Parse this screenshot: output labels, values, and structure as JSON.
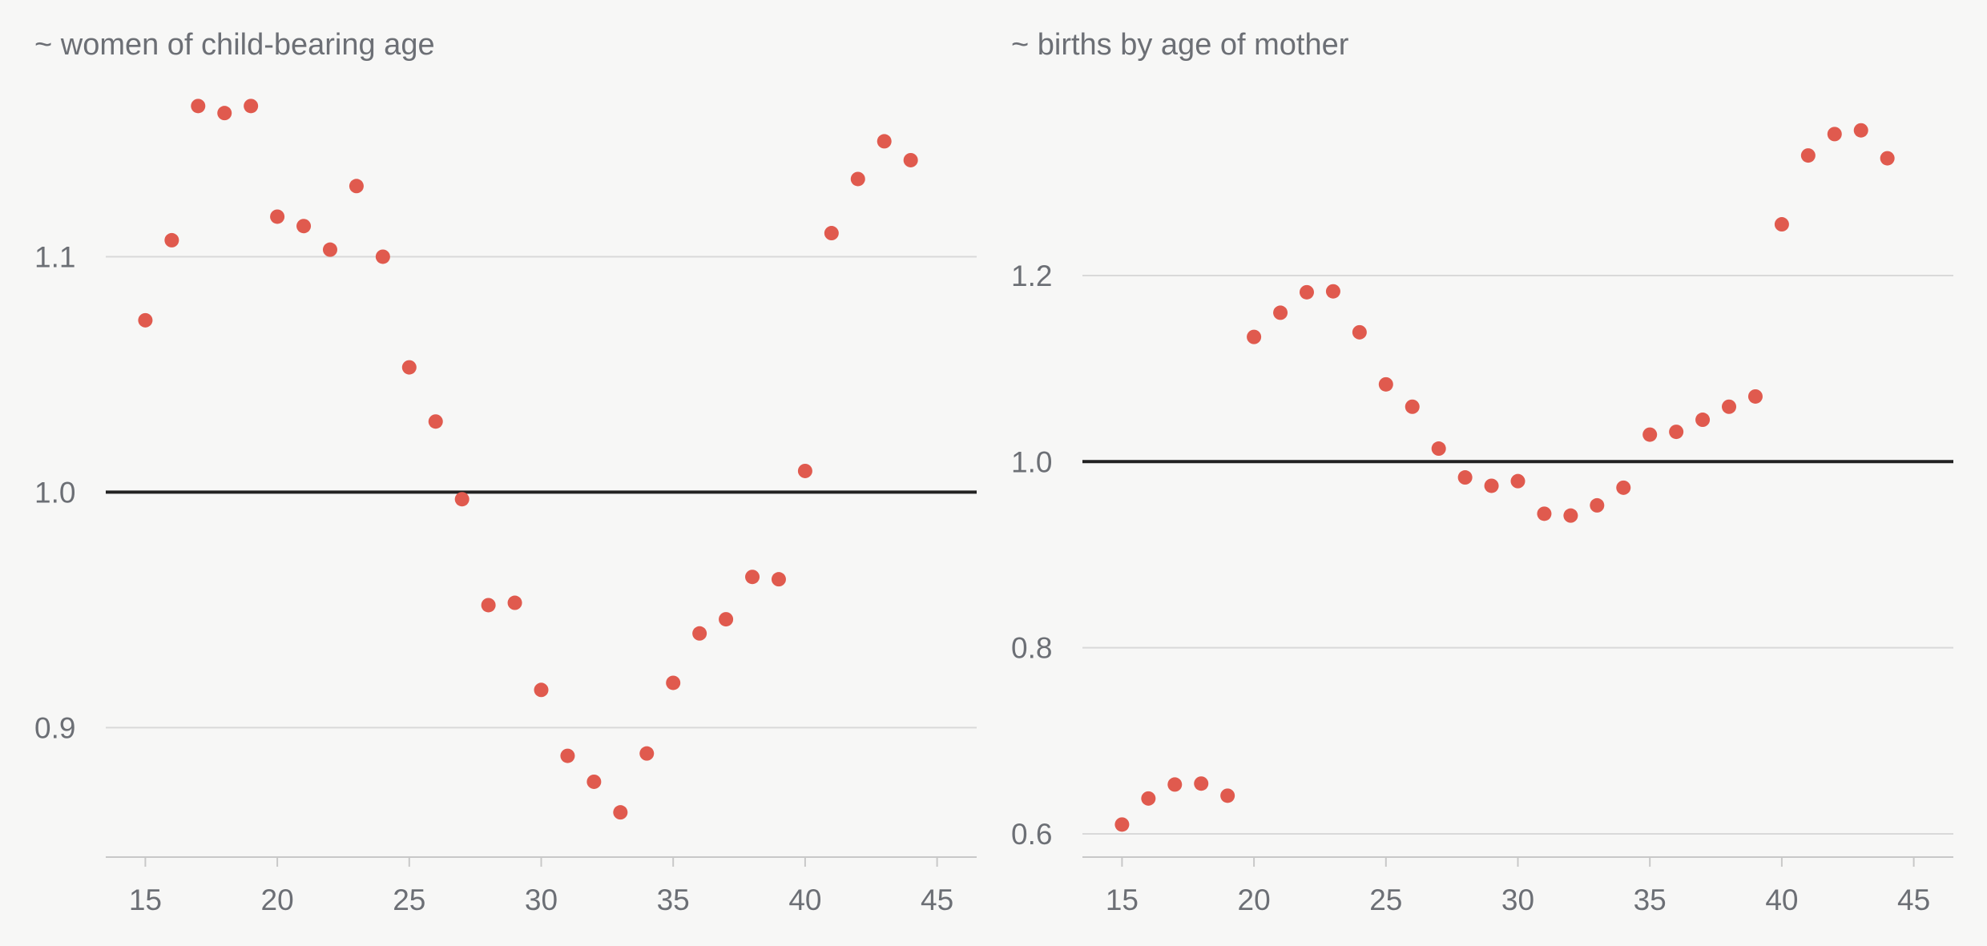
{
  "colors": {
    "point": "#e05a4e",
    "baseline": "#222222",
    "grid": "#d9d9d9",
    "text": "#6c6f75",
    "background": "#f7f7f6"
  },
  "chart_data": [
    {
      "type": "scatter",
      "title": "~ women of child-bearing age",
      "xlabel": "",
      "ylabel": "",
      "xlim": [
        13.5,
        46.5
      ],
      "ylim": [
        0.845,
        1.175
      ],
      "xticks": [
        15,
        20,
        25,
        30,
        35,
        40,
        45
      ],
      "yticks": [
        0.9,
        1.0,
        1.1
      ],
      "ytick_labels": [
        "0.9",
        "1.0",
        "1.1"
      ],
      "reference_line": 1.0,
      "grid": true,
      "x": [
        15,
        16,
        17,
        18,
        19,
        20,
        21,
        22,
        23,
        24,
        25,
        26,
        27,
        28,
        29,
        30,
        31,
        32,
        33,
        34,
        35,
        36,
        37,
        38,
        39,
        40,
        41,
        42,
        43,
        44
      ],
      "y": [
        1.073,
        1.107,
        1.164,
        1.161,
        1.164,
        1.117,
        1.113,
        1.103,
        1.13,
        1.1,
        1.053,
        1.03,
        0.997,
        0.952,
        0.953,
        0.916,
        0.888,
        0.877,
        0.864,
        0.889,
        0.919,
        0.94,
        0.946,
        0.964,
        0.963,
        1.009,
        1.11,
        1.133,
        1.149,
        1.141
      ]
    },
    {
      "type": "scatter",
      "title": "~ births by age of mother",
      "xlabel": "",
      "ylabel": "",
      "xlim": [
        13.5,
        46.5
      ],
      "ylim": [
        0.575,
        1.41
      ],
      "xticks": [
        15,
        20,
        25,
        30,
        35,
        40,
        45
      ],
      "yticks": [
        0.6,
        0.8,
        1.0,
        1.2
      ],
      "ytick_labels": [
        "0.6",
        "0.8",
        "1.0",
        "1.2"
      ],
      "reference_line": 1.0,
      "grid": true,
      "x": [
        15,
        16,
        17,
        18,
        19,
        20,
        21,
        22,
        23,
        24,
        25,
        26,
        27,
        28,
        29,
        30,
        31,
        32,
        33,
        34,
        35,
        36,
        37,
        38,
        39,
        40,
        41,
        42,
        43,
        44
      ],
      "y": [
        0.61,
        0.638,
        0.653,
        0.654,
        0.641,
        1.134,
        1.16,
        1.182,
        1.183,
        1.139,
        1.083,
        1.059,
        1.014,
        0.983,
        0.974,
        0.979,
        0.944,
        0.942,
        0.953,
        0.972,
        1.029,
        1.032,
        1.045,
        1.059,
        1.07,
        1.255,
        1.329,
        1.352,
        1.356,
        1.326
      ]
    }
  ]
}
